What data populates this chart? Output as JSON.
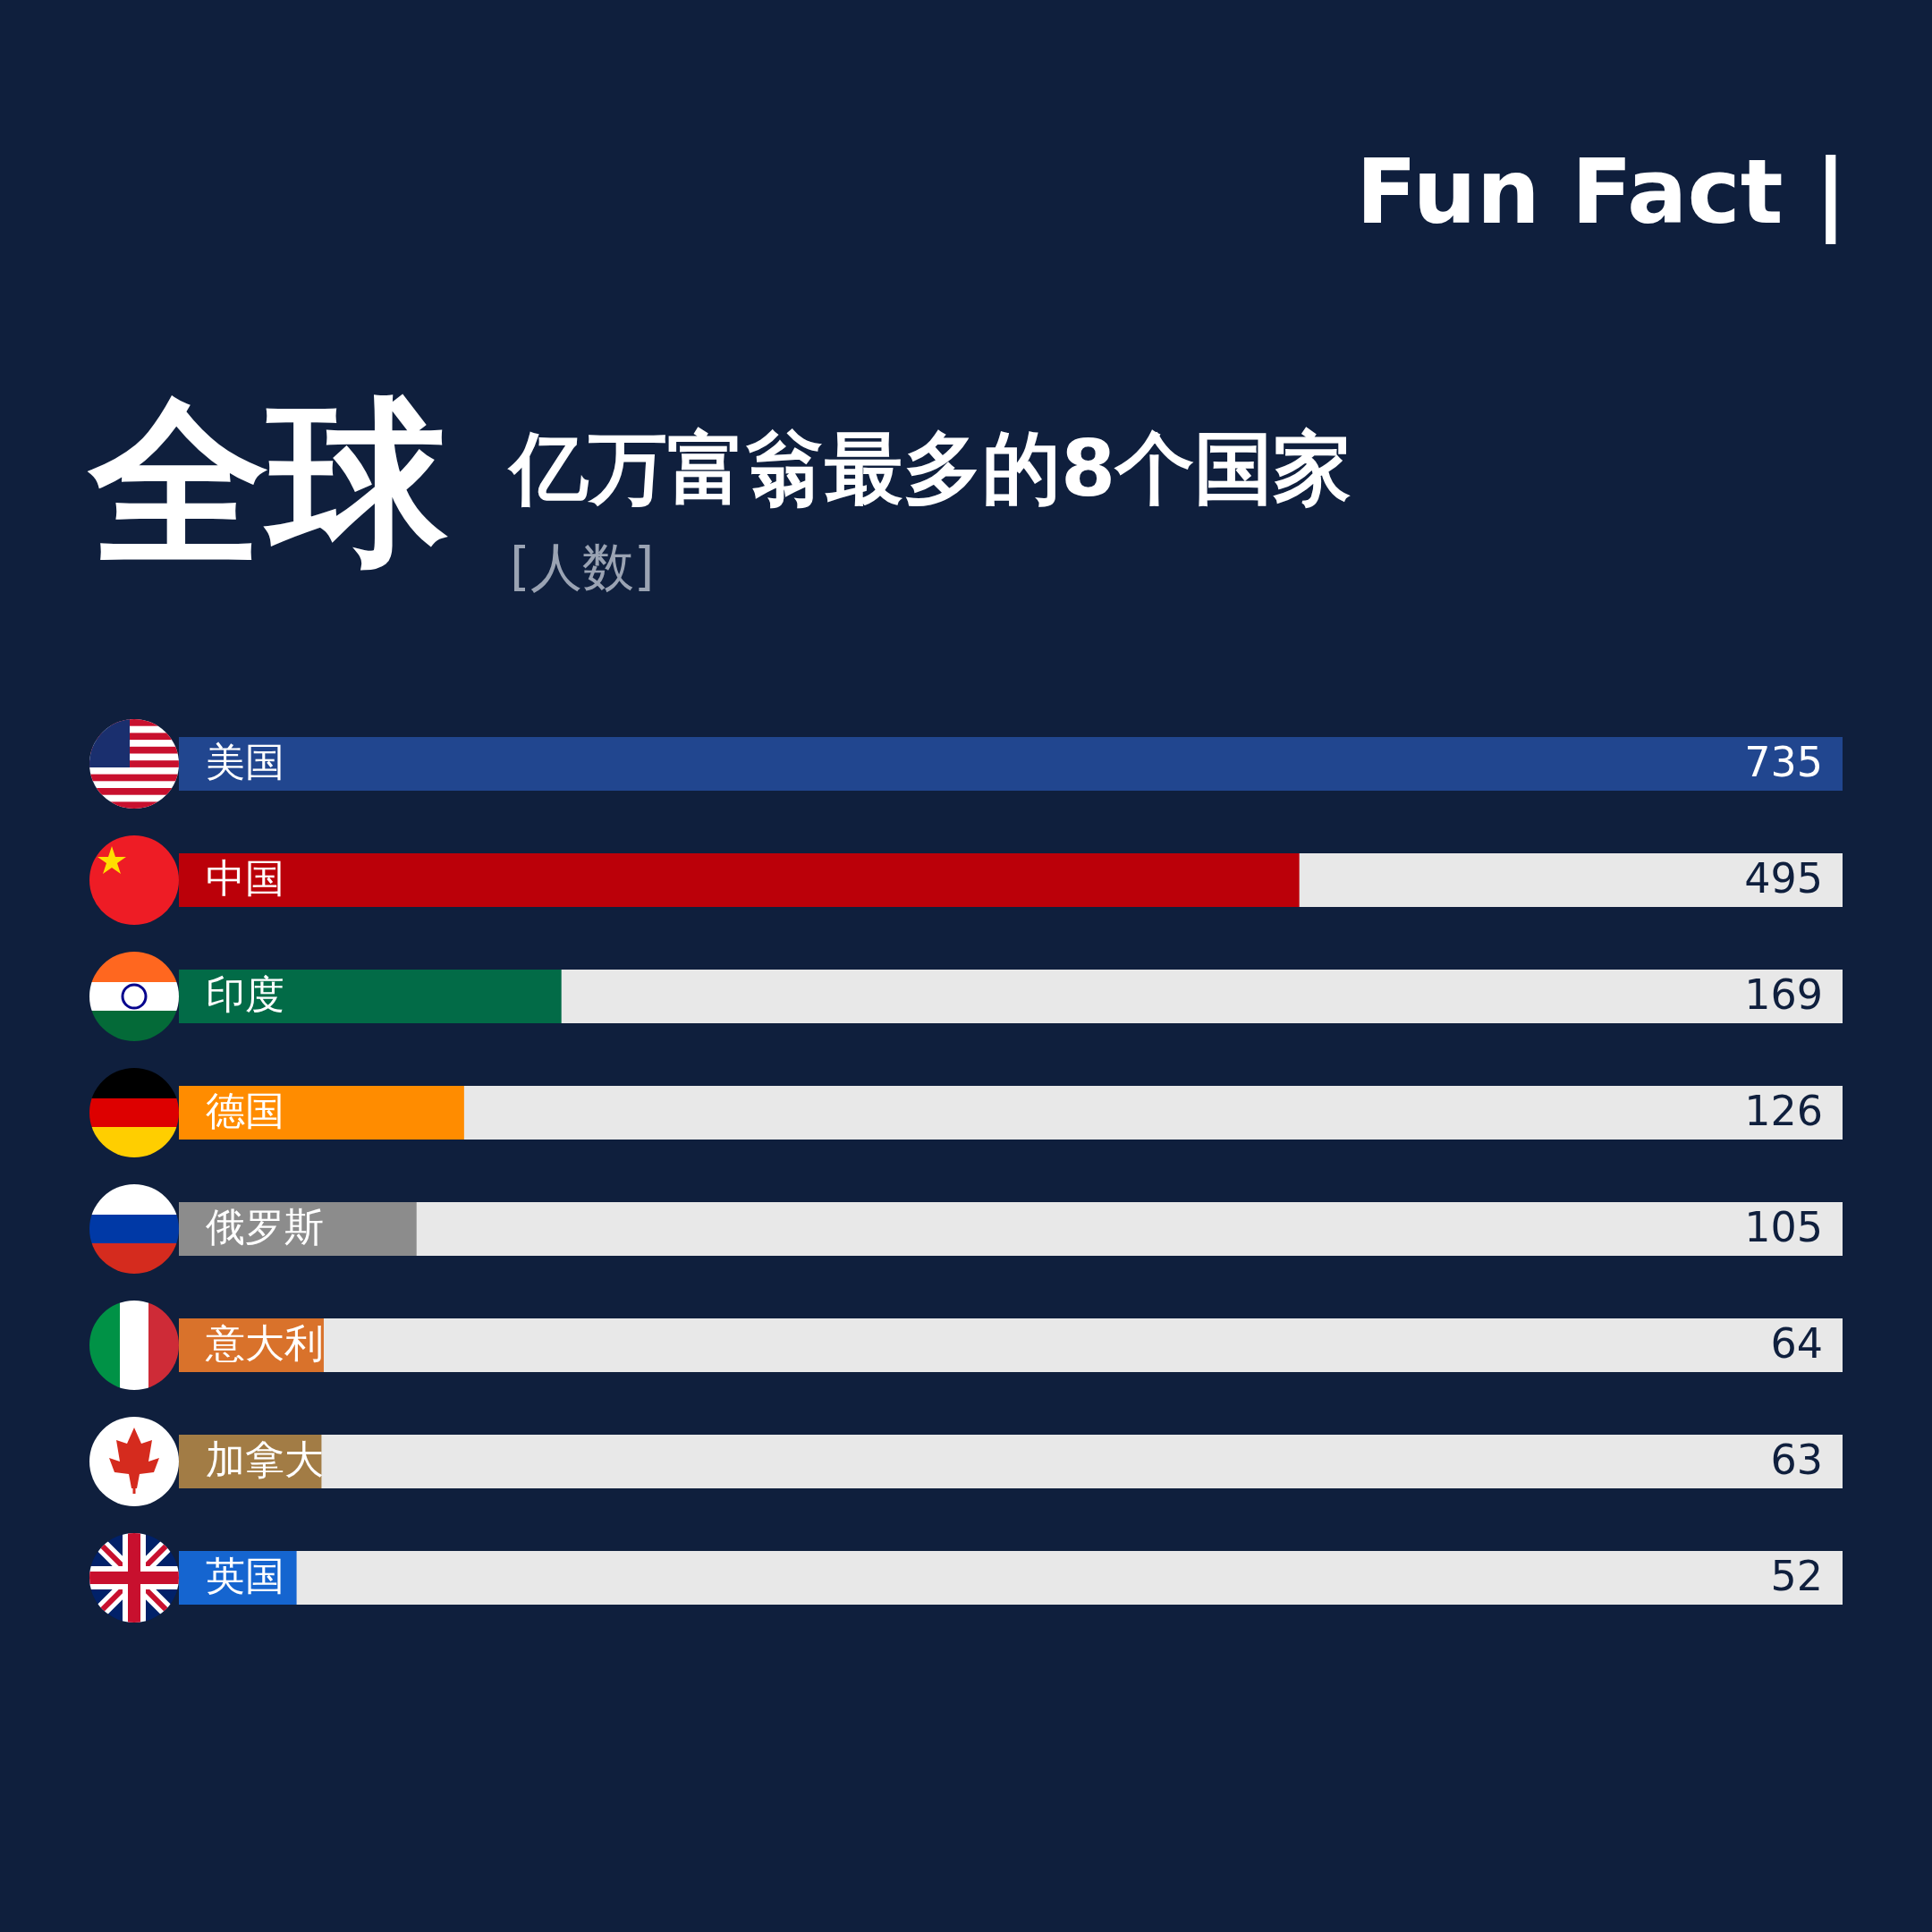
{
  "chart_data": {
    "type": "bar",
    "orientation": "horizontal",
    "title": "全球",
    "subtitle": "亿万富翁最多的8个国家",
    "annotations": [
      "Fun Fact |",
      "[人数]"
    ],
    "categories": [
      "美国",
      "中国",
      "印度",
      "德国",
      "俄罗斯",
      "意大利",
      "加拿大",
      "英国"
    ],
    "values": [
      735,
      495,
      169,
      126,
      105,
      64,
      63,
      52
    ],
    "colors": [
      "#21468f",
      "#bb0009",
      "#026b47",
      "#ff8c00",
      "#8c8c8c",
      "#d9722b",
      "#a27c45",
      "#1565d0"
    ],
    "data_labels": true
  }
}
